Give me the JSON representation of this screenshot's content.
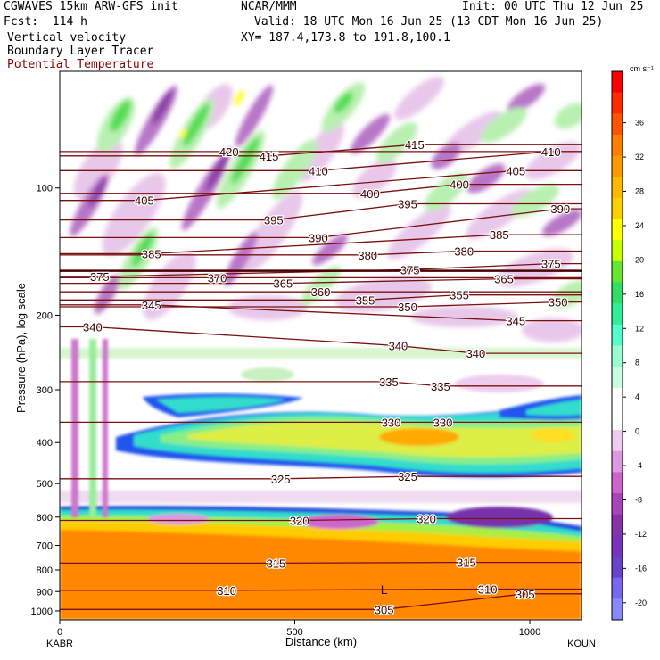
{
  "header": {
    "left1": "CGWAVES 15km ARW-GFS init",
    "left2": "Fcst:  114 h",
    "left3": "Vertical velocity",
    "left4": "Boundary Layer Tracer",
    "left5": "Potential Temperature",
    "center1": "NCAR/MMM",
    "init": "Init: 00 UTC Thu 12 Jun 25",
    "valid": "Valid: 18 UTC Mon 16 Jun 25 (13 CDT Mon 16 Jun 25)",
    "xy": "XY= 187.4,173.8 to 191.8,100.1"
  },
  "colorbar": {
    "units": "cm s⁻¹",
    "ticks": [
      "36",
      "32",
      "28",
      "24",
      "20",
      "16",
      "12",
      "8",
      "4",
      "0",
      "-4",
      "-8",
      "-12",
      "-16",
      "-20"
    ],
    "colors": [
      "#ff0000",
      "#ff2a00",
      "#ff5500",
      "#ff7f00",
      "#ff9900",
      "#ffb800",
      "#ffd000",
      "#ffff00",
      "#c8ff00",
      "#66e633",
      "#33dd66",
      "#33ee99",
      "#55ffcc",
      "#99ffcc",
      "#ccffdd",
      "#ffffff",
      "#ffffff",
      "#eeccee",
      "#dd99dd",
      "#cc66cc",
      "#aa44bb",
      "#8833aa",
      "#7733bb",
      "#6644cc",
      "#7766ee",
      "#8888ff"
    ]
  },
  "chart_data": {
    "type": "heatmap",
    "title": "Vertical velocity, Boundary Layer Tracer, Potential Temperature",
    "xlabel": "Distance (km)",
    "ylabel": "Pressure (hPa), log scale",
    "xlim": [
      0,
      1110
    ],
    "x_ticks": [
      "0",
      "500",
      "1000"
    ],
    "x_endpoints": [
      "KABR",
      "KOUN"
    ],
    "y_ticks": [
      "100",
      "200",
      "300",
      "400",
      "500",
      "600",
      "700",
      "800",
      "900",
      "1000"
    ],
    "y_scale": "log",
    "theta_contours": [
      {
        "label": "420",
        "x": 360,
        "p": 82
      },
      {
        "label": "415",
        "x": 445,
        "p": 84
      },
      {
        "label": "415",
        "x": 755,
        "p": 79
      },
      {
        "label": "410",
        "x": 550,
        "p": 91
      },
      {
        "label": "410",
        "x": 1045,
        "p": 82
      },
      {
        "label": "405",
        "x": 180,
        "p": 107
      },
      {
        "label": "405",
        "x": 970,
        "p": 91
      },
      {
        "label": "400",
        "x": 660,
        "p": 103
      },
      {
        "label": "400",
        "x": 850,
        "p": 98
      },
      {
        "label": "395",
        "x": 455,
        "p": 119
      },
      {
        "label": "395",
        "x": 740,
        "p": 109
      },
      {
        "label": "390",
        "x": 550,
        "p": 131
      },
      {
        "label": "390",
        "x": 1065,
        "p": 112
      },
      {
        "label": "385",
        "x": 195,
        "p": 143
      },
      {
        "label": "385",
        "x": 935,
        "p": 129
      },
      {
        "label": "380",
        "x": 655,
        "p": 144
      },
      {
        "label": "380",
        "x": 860,
        "p": 141
      },
      {
        "label": "375",
        "x": 85,
        "p": 162
      },
      {
        "label": "375",
        "x": 745,
        "p": 156
      },
      {
        "label": "375",
        "x": 1045,
        "p": 151
      },
      {
        "label": "370",
        "x": 335,
        "p": 163
      },
      {
        "label": "365",
        "x": 475,
        "p": 168
      },
      {
        "label": "365",
        "x": 945,
        "p": 164
      },
      {
        "label": "360",
        "x": 555,
        "p": 176
      },
      {
        "label": "355",
        "x": 650,
        "p": 184
      },
      {
        "label": "355",
        "x": 850,
        "p": 179
      },
      {
        "label": "350",
        "x": 740,
        "p": 191
      },
      {
        "label": "350",
        "x": 1060,
        "p": 186
      },
      {
        "label": "345",
        "x": 195,
        "p": 189
      },
      {
        "label": "345",
        "x": 970,
        "p": 206
      },
      {
        "label": "340",
        "x": 70,
        "p": 213
      },
      {
        "label": "340",
        "x": 720,
        "p": 236
      },
      {
        "label": "340",
        "x": 885,
        "p": 246
      },
      {
        "label": "335",
        "x": 700,
        "p": 287
      },
      {
        "label": "335",
        "x": 810,
        "p": 294
      },
      {
        "label": "330",
        "x": 705,
        "p": 358
      },
      {
        "label": "330",
        "x": 815,
        "p": 358
      },
      {
        "label": "325",
        "x": 470,
        "p": 487
      },
      {
        "label": "325",
        "x": 740,
        "p": 481
      },
      {
        "label": "320",
        "x": 510,
        "p": 611
      },
      {
        "label": "320",
        "x": 780,
        "p": 605
      },
      {
        "label": "315",
        "x": 460,
        "p": 771
      },
      {
        "label": "315",
        "x": 865,
        "p": 768
      },
      {
        "label": "310",
        "x": 355,
        "p": 894
      },
      {
        "label": "310",
        "x": 910,
        "p": 888
      },
      {
        "label": "305",
        "x": 990,
        "p": 911
      },
      {
        "label": "305",
        "x": 690,
        "p": 992
      }
    ],
    "low_marker": {
      "label": "L",
      "x": 690,
      "p": 890
    },
    "colorbar_range": [
      -20,
      40
    ],
    "colorbar_units": "cm s⁻¹"
  }
}
